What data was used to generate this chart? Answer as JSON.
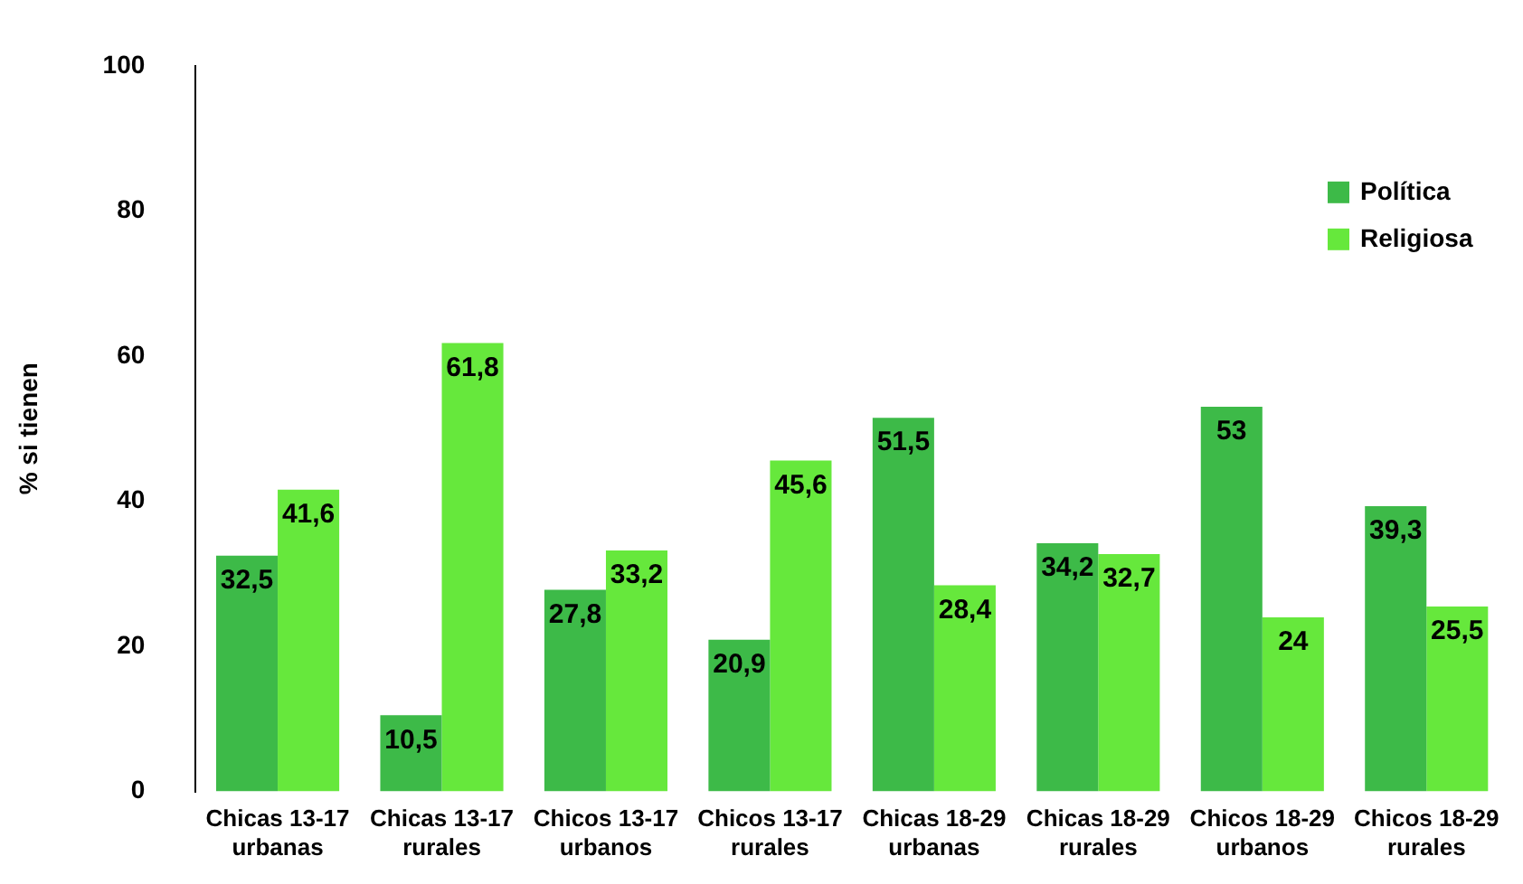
{
  "chart_data": {
    "type": "bar",
    "ylabel": "% si tienen",
    "categories": [
      "Chicas 13-17 urbanas",
      "Chicas 13-17 rurales",
      "Chicos 13-17 urbanos",
      "Chicos 13-17 rurales",
      "Chicas 18-29 urbanas",
      "Chicas 18-29 rurales",
      "Chicos 18-29 urbanos",
      "Chicos 18-29 rurales"
    ],
    "series": [
      {
        "name": "Política",
        "color": "#3dba48",
        "values": [
          32.5,
          10.5,
          27.8,
          20.9,
          51.5,
          34.2,
          53,
          39.3
        ],
        "value_labels": [
          "32,5",
          "10,5",
          "27,8",
          "20,9",
          "51,5",
          "34,2",
          "53",
          "39,3"
        ]
      },
      {
        "name": "Religiosa",
        "color": "#66e83c",
        "values": [
          41.6,
          61.8,
          33.2,
          45.6,
          28.4,
          32.7,
          24,
          25.5
        ],
        "value_labels": [
          "41,6",
          "61,8",
          "33,2",
          "45,6",
          "28,4",
          "32,7",
          "24",
          "25,5"
        ]
      }
    ],
    "ylim": [
      0,
      100
    ],
    "yticks": [
      0,
      20,
      40,
      60,
      80,
      100
    ],
    "grid": false,
    "legend": "top right"
  }
}
